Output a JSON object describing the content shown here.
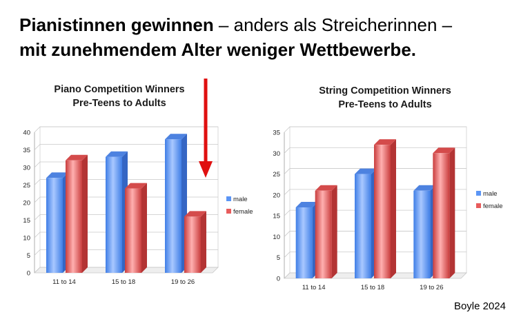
{
  "headline": {
    "part1_bold": "Pianistinnen gewinnen",
    "part2": " – anders als Streicherinnen –",
    "part3_bold": "mit zunehmendem Alter weniger Wettbewerbe."
  },
  "source": "Boyle 2024",
  "colors": {
    "male": "#5b95f5",
    "female": "#e85c5c",
    "arrow": "#e01010"
  },
  "chart_data": [
    {
      "type": "bar",
      "title_line1": "Piano Competition Winners",
      "title_line2": "Pre-Teens to Adults",
      "categories": [
        "11 to 14",
        "15 to 18",
        "19 to 26"
      ],
      "series": [
        {
          "name": "male",
          "values": [
            27,
            33,
            38
          ]
        },
        {
          "name": "female",
          "values": [
            32,
            24,
            16
          ]
        }
      ],
      "ylim": [
        0,
        40
      ],
      "yticks": [
        0,
        5,
        10,
        15,
        20,
        25,
        30,
        35,
        40
      ],
      "legend": "right",
      "grid": true
    },
    {
      "type": "bar",
      "title_line1": "String Competition Winners",
      "title_line2": "Pre-Teens to Adults",
      "categories": [
        "11 to 14",
        "15 to 18",
        "19 to 26"
      ],
      "series": [
        {
          "name": "male",
          "values": [
            17,
            25,
            21
          ]
        },
        {
          "name": "female",
          "values": [
            21,
            32,
            30
          ]
        }
      ],
      "ylim": [
        0,
        35
      ],
      "yticks": [
        0,
        5,
        10,
        15,
        20,
        25,
        30,
        35
      ],
      "legend": "right",
      "grid": true
    }
  ]
}
